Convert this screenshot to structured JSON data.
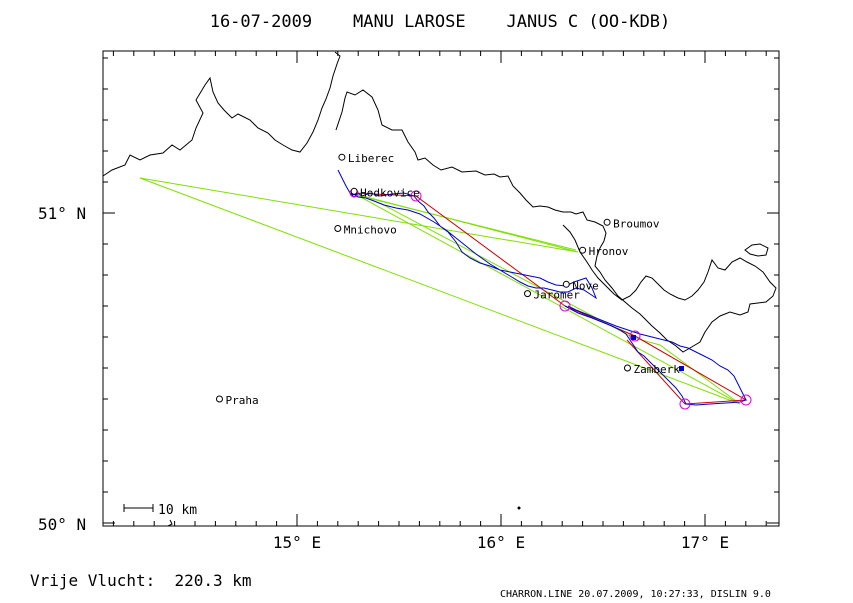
{
  "title": "16-07-2009    MANU LAROSE    JANUS C (OO-KDB)",
  "axes": {
    "lat_labels": [
      "51° N",
      "50° N"
    ],
    "lon_labels": [
      "15° E",
      "16° E",
      "17° E"
    ]
  },
  "scale_label": "10 km",
  "distance_label": "Vrije Vlucht:  220.3 km",
  "footer": "CHARRON.LINE 20.07.2009, 10:27:33, DISLIN 9.0",
  "towns": [
    {
      "name": "Liberec",
      "lon": 15.22,
      "lat": 51.18
    },
    {
      "name": "Hodkovice",
      "lon": 15.28,
      "lat": 51.07
    },
    {
      "name": "Mnichovo",
      "lon": 15.2,
      "lat": 50.95
    },
    {
      "name": "Broumov",
      "lon": 16.52,
      "lat": 50.97
    },
    {
      "name": "Hronov",
      "lon": 16.4,
      "lat": 50.88
    },
    {
      "name": "Nove",
      "lon": 16.32,
      "lat": 50.77
    },
    {
      "name": "Jaromer",
      "lon": 16.13,
      "lat": 50.74
    },
    {
      "name": "Zamberk",
      "lon": 16.62,
      "lat": 50.5
    },
    {
      "name": "Praha",
      "lon": 14.62,
      "lat": 50.4
    }
  ],
  "colors": {
    "frame": "#000000",
    "border": "#000000",
    "track": "#0000cc",
    "task": "#cc0000",
    "legs": "#80e000",
    "turnpoints": "#e000e0"
  }
}
